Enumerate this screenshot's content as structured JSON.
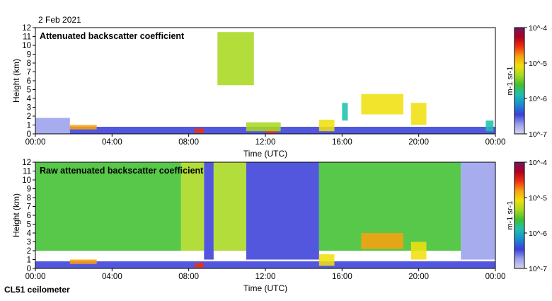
{
  "date_label": "2 Feb 2021",
  "footer_label": "CL51 ceilometer",
  "colors": {
    "background": "#ffffff",
    "axis": "#000000",
    "low_signal": "#d8d8ee",
    "colormap": [
      "#d4d4f0",
      "#9aa0ea",
      "#3a40d8",
      "#1890d0",
      "#20c0b0",
      "#40c030",
      "#a8d820",
      "#f0e010",
      "#f8a010",
      "#f03010",
      "#b00020",
      "#701860"
    ]
  },
  "chart_data": [
    {
      "type": "heatmap",
      "title": "Attenuated backscatter coefficient",
      "xlabel": "Time (UTC)",
      "ylabel": "Height (km)",
      "x_range_hours": [
        0,
        24
      ],
      "ylim": [
        0,
        12
      ],
      "xticks": [
        "00:00",
        "04:00",
        "08:00",
        "12:00",
        "16:00",
        "20:00",
        "00:00"
      ],
      "yticks": [
        "0",
        "1",
        "2",
        "3",
        "4",
        "5",
        "6",
        "7",
        "8",
        "9",
        "10",
        "11",
        "12"
      ],
      "colorbar": {
        "scale": "log",
        "range": [
          1e-07,
          0.0001
        ],
        "tick_labels": [
          "10^-4",
          "10^-5",
          "10^-6",
          "10^-7"
        ],
        "label": "m-1 sr-1"
      },
      "features": [
        {
          "name": "boundary layer aerosol",
          "t_start": 0.0,
          "t_end": 1.8,
          "h_bottom": 0.0,
          "h_top": 1.8,
          "level": 1
        },
        {
          "name": "surface aerosol layer",
          "t_start": 1.8,
          "t_end": 24.0,
          "h_bottom": 0.0,
          "h_top": 0.8,
          "level": 2
        },
        {
          "name": "low cloud",
          "t_start": 1.8,
          "t_end": 3.2,
          "h_bottom": 0.5,
          "h_top": 1.0,
          "level": 8
        },
        {
          "name": "low cloud",
          "t_start": 8.3,
          "t_end": 8.8,
          "h_bottom": 0.1,
          "h_top": 0.6,
          "level": 9
        },
        {
          "name": "low cloud",
          "t_start": 12.0,
          "t_end": 12.6,
          "h_bottom": 0.1,
          "h_top": 0.5,
          "level": 9
        },
        {
          "name": "cloud",
          "t_start": 11.0,
          "t_end": 12.8,
          "h_bottom": 0.3,
          "h_top": 1.3,
          "level": 6
        },
        {
          "name": "cloud",
          "t_start": 14.8,
          "t_end": 15.6,
          "h_bottom": 0.3,
          "h_top": 1.6,
          "level": 7
        },
        {
          "name": "cloud",
          "t_start": 16.0,
          "t_end": 16.3,
          "h_bottom": 1.5,
          "h_top": 3.5,
          "level": 4
        },
        {
          "name": "mid-level cloud",
          "t_start": 17.0,
          "t_end": 19.2,
          "h_bottom": 2.2,
          "h_top": 4.5,
          "level": 7
        },
        {
          "name": "mid-level cloud",
          "t_start": 19.6,
          "t_end": 20.4,
          "h_bottom": 1.0,
          "h_top": 3.5,
          "level": 7
        },
        {
          "name": "cloud",
          "t_start": 23.5,
          "t_end": 23.9,
          "h_bottom": 0.3,
          "h_top": 1.5,
          "level": 4
        },
        {
          "name": "high cloud",
          "t_start": 9.5,
          "t_end": 11.4,
          "h_bottom": 5.5,
          "h_top": 11.5,
          "level": 6
        }
      ]
    },
    {
      "type": "heatmap",
      "title": "Raw attenuated backscatter coefficient",
      "xlabel": "Time (UTC)",
      "ylabel": "Height (km)",
      "x_range_hours": [
        0,
        24
      ],
      "ylim": [
        0,
        12
      ],
      "xticks": [
        "00:00",
        "04:00",
        "08:00",
        "12:00",
        "16:00",
        "20:00",
        "00:00"
      ],
      "yticks": [
        "0",
        "1",
        "2",
        "3",
        "4",
        "5",
        "6",
        "7",
        "8",
        "9",
        "10",
        "11",
        "12"
      ],
      "colorbar": {
        "scale": "log",
        "range": [
          1e-07,
          0.0001
        ],
        "tick_labels": [
          "10^-4",
          "10^-5",
          "10^-6",
          "10^-7"
        ],
        "label": "m-1 sr-1"
      },
      "features": [
        {
          "name": "noise band",
          "t_start": 0.0,
          "t_end": 7.6,
          "h_bottom": 2.0,
          "h_top": 12.0,
          "level": 5
        },
        {
          "name": "noise band",
          "t_start": 7.6,
          "t_end": 8.8,
          "h_bottom": 2.0,
          "h_top": 12.0,
          "level": 6
        },
        {
          "name": "noise band",
          "t_start": 8.8,
          "t_end": 9.3,
          "h_bottom": 1.0,
          "h_top": 12.0,
          "level": 2
        },
        {
          "name": "noise band",
          "t_start": 9.3,
          "t_end": 11.0,
          "h_bottom": 2.0,
          "h_top": 12.0,
          "level": 6
        },
        {
          "name": "noise band",
          "t_start": 11.0,
          "t_end": 14.8,
          "h_bottom": 1.0,
          "h_top": 12.0,
          "level": 2
        },
        {
          "name": "noise band",
          "t_start": 14.8,
          "t_end": 22.2,
          "h_bottom": 2.0,
          "h_top": 12.0,
          "level": 5
        },
        {
          "name": "noise band",
          "t_start": 22.2,
          "t_end": 24.0,
          "h_bottom": 1.0,
          "h_top": 12.0,
          "level": 1
        },
        {
          "name": "surface aerosol layer",
          "t_start": 0.0,
          "t_end": 24.0,
          "h_bottom": 0.0,
          "h_top": 0.8,
          "level": 2
        },
        {
          "name": "low cloud",
          "t_start": 1.8,
          "t_end": 3.2,
          "h_bottom": 0.5,
          "h_top": 1.0,
          "level": 8
        },
        {
          "name": "low cloud",
          "t_start": 8.3,
          "t_end": 8.8,
          "h_bottom": 0.1,
          "h_top": 0.6,
          "level": 9
        },
        {
          "name": "cloud",
          "t_start": 14.8,
          "t_end": 15.6,
          "h_bottom": 0.3,
          "h_top": 1.6,
          "level": 7
        },
        {
          "name": "mid-level cloud",
          "t_start": 17.0,
          "t_end": 19.2,
          "h_bottom": 2.2,
          "h_top": 4.0,
          "level": 8
        },
        {
          "name": "mid-level cloud",
          "t_start": 19.6,
          "t_end": 20.4,
          "h_bottom": 1.0,
          "h_top": 3.0,
          "level": 7
        }
      ]
    }
  ]
}
